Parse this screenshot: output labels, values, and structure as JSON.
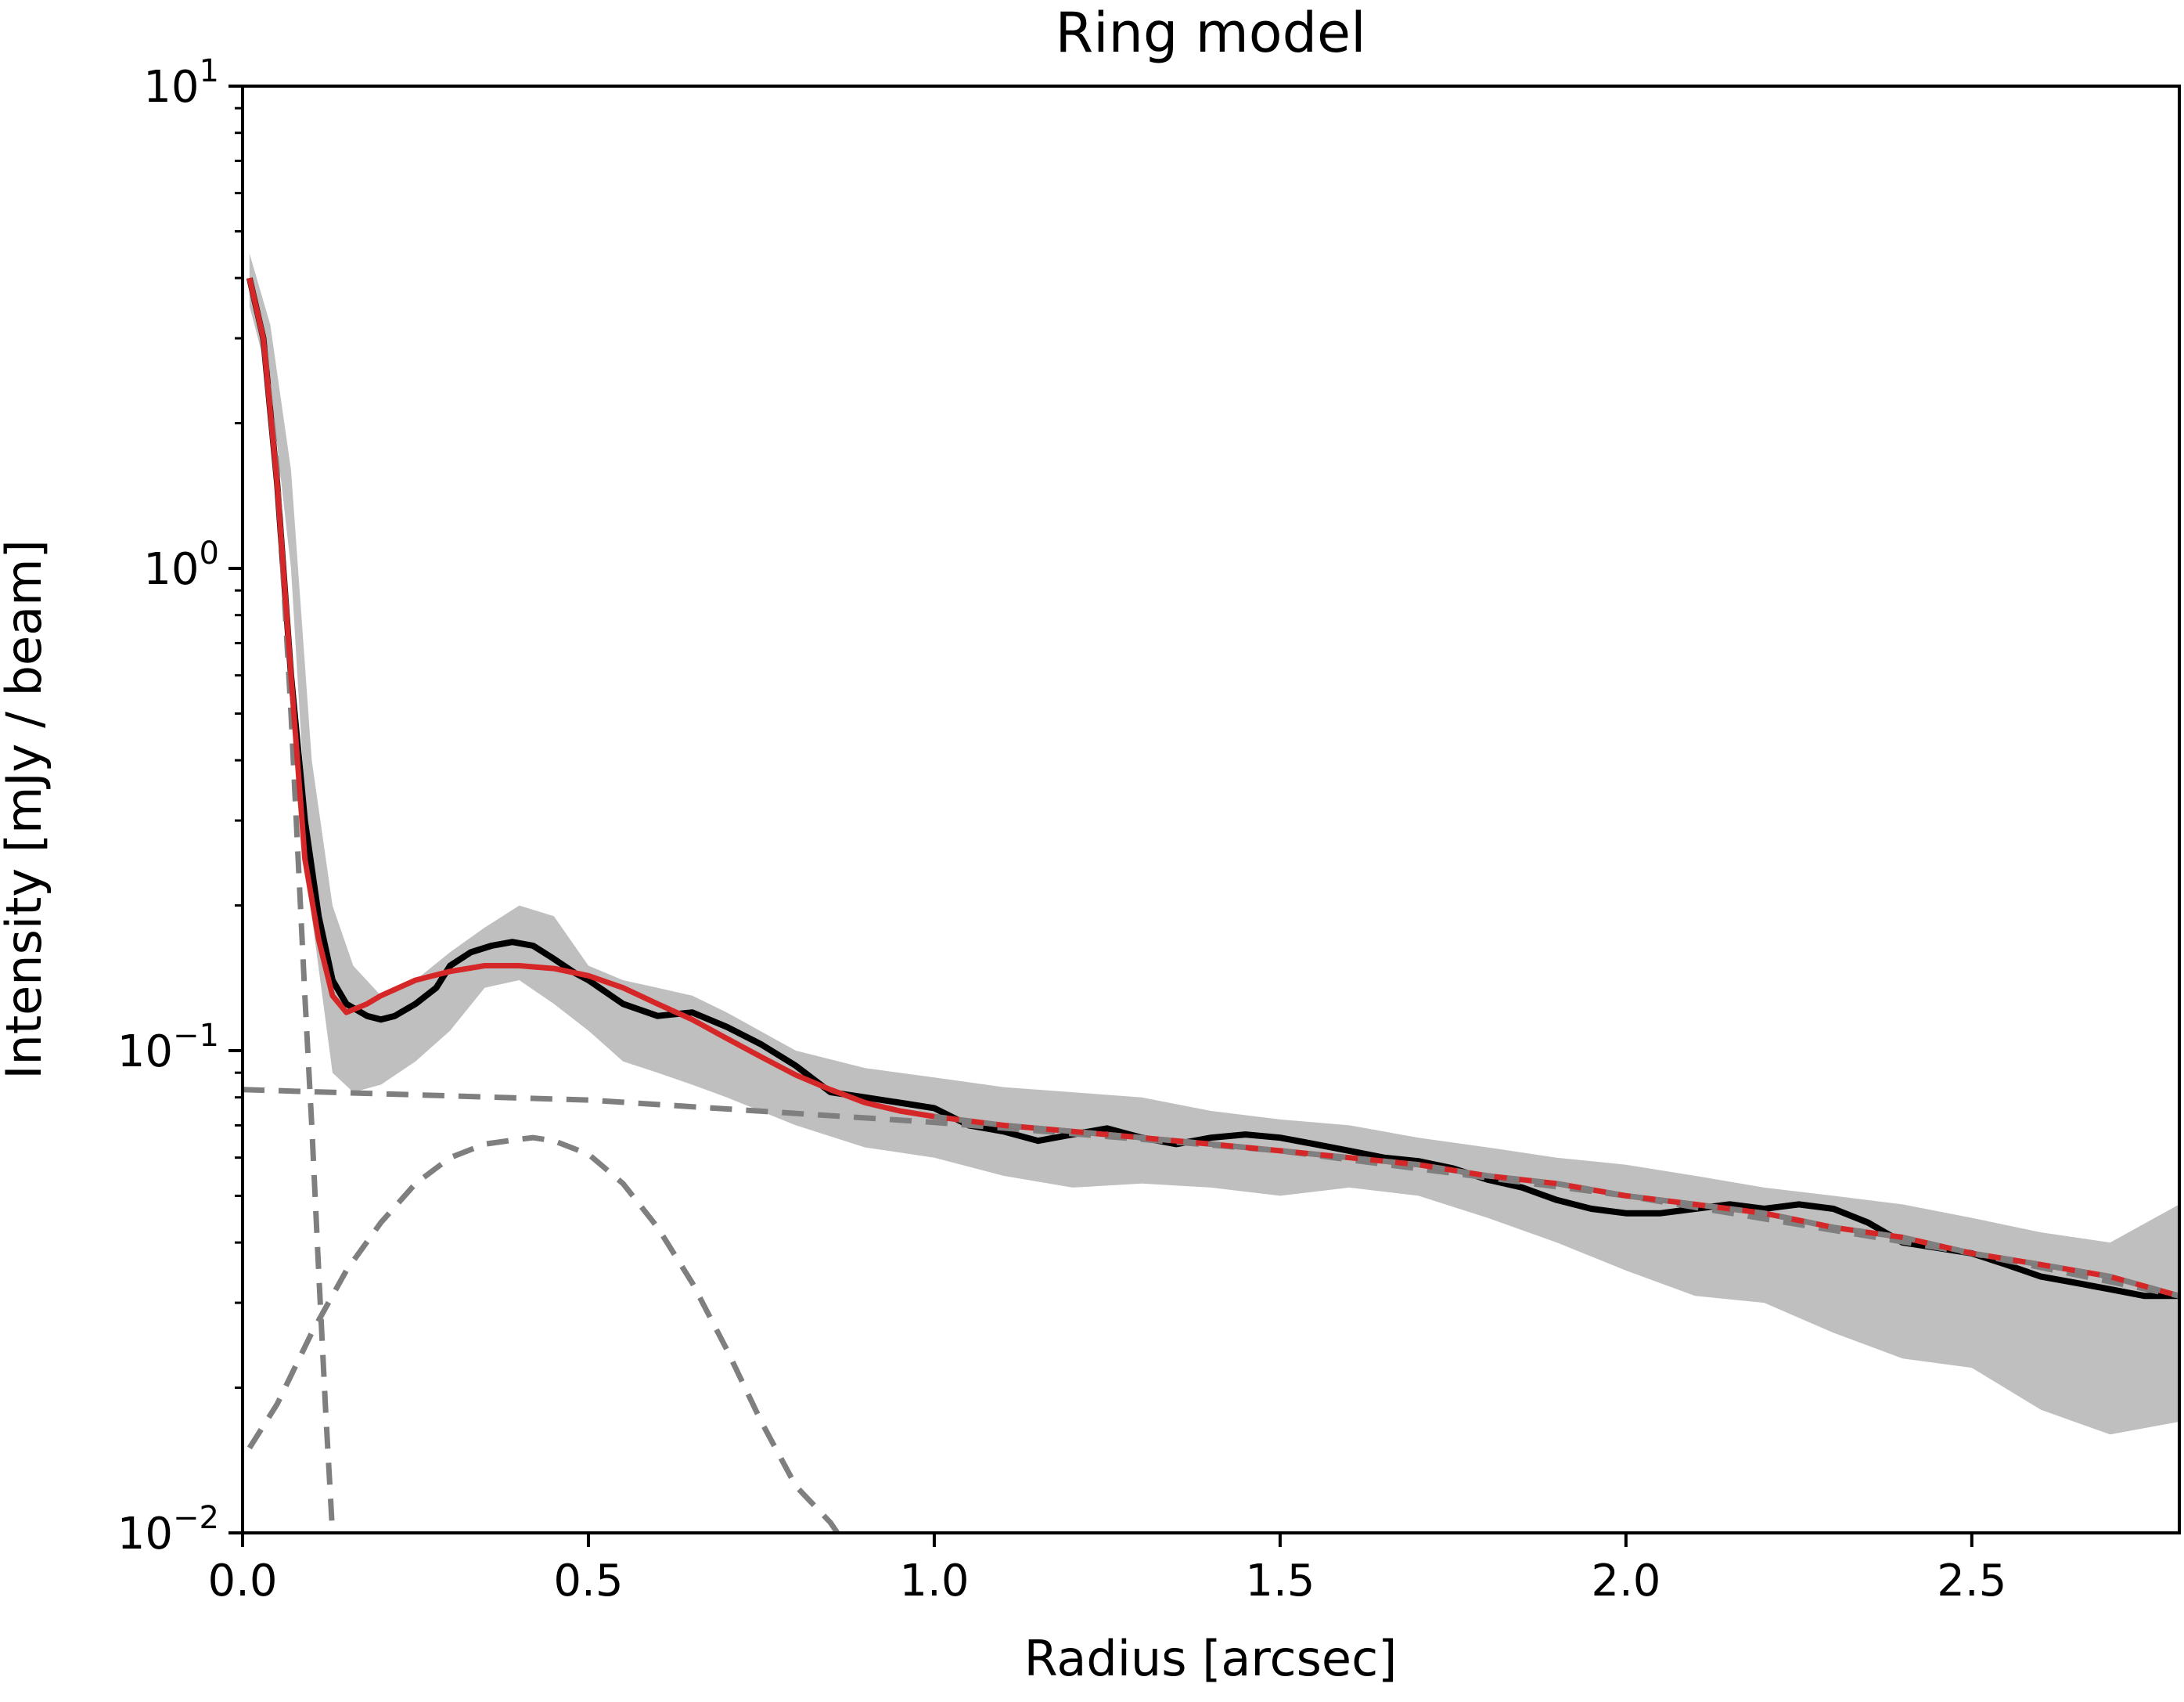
{
  "chart_data": {
    "type": "line",
    "title": "Ring model",
    "xlabel": "Radius [arcsec]",
    "ylabel": "Intensity [mJy / beam]",
    "xlim": [
      0.0,
      2.8
    ],
    "ylim": [
      0.01,
      10
    ],
    "yscale": "log",
    "grid": false,
    "legend": "none",
    "x_ticks": [
      {
        "value": 0.0,
        "label": "0.0"
      },
      {
        "value": 0.5,
        "label": "0.5"
      },
      {
        "value": 1.0,
        "label": "1.0"
      },
      {
        "value": 1.5,
        "label": "1.5"
      },
      {
        "value": 2.0,
        "label": "2.0"
      },
      {
        "value": 2.5,
        "label": "2.5"
      }
    ],
    "y_ticks": [
      {
        "value": 10,
        "base": "10",
        "exp": "1"
      },
      {
        "value": 1,
        "base": "10",
        "exp": "0"
      },
      {
        "value": 0.1,
        "base": "10",
        "exp": "−1"
      },
      {
        "value": 0.01,
        "base": "10",
        "exp": "−2"
      }
    ],
    "colors": {
      "band": "#bfbfbf",
      "data": "#000000",
      "model": "#d62728",
      "components": "#7f7f7f"
    },
    "uncertainty_band": {
      "x": [
        0.01,
        0.04,
        0.07,
        0.1,
        0.13,
        0.16,
        0.2,
        0.25,
        0.3,
        0.35,
        0.4,
        0.45,
        0.5,
        0.55,
        0.6,
        0.65,
        0.7,
        0.8,
        0.9,
        1.0,
        1.1,
        1.2,
        1.3,
        1.4,
        1.5,
        1.6,
        1.7,
        1.8,
        1.9,
        2.0,
        2.1,
        2.2,
        2.3,
        2.4,
        2.5,
        2.6,
        2.7,
        2.8
      ],
      "upper": [
        4.5,
        3.2,
        1.6,
        0.4,
        0.2,
        0.15,
        0.13,
        0.14,
        0.16,
        0.18,
        0.2,
        0.19,
        0.15,
        0.14,
        0.135,
        0.13,
        0.12,
        0.1,
        0.092,
        0.088,
        0.084,
        0.082,
        0.08,
        0.075,
        0.072,
        0.07,
        0.066,
        0.063,
        0.06,
        0.058,
        0.055,
        0.052,
        0.05,
        0.048,
        0.045,
        0.042,
        0.04,
        0.048
      ],
      "lower": [
        3.5,
        2.4,
        1.0,
        0.19,
        0.09,
        0.082,
        0.085,
        0.095,
        0.11,
        0.135,
        0.14,
        0.125,
        0.11,
        0.095,
        0.09,
        0.085,
        0.08,
        0.07,
        0.063,
        0.06,
        0.055,
        0.052,
        0.053,
        0.052,
        0.05,
        0.052,
        0.05,
        0.045,
        0.04,
        0.035,
        0.031,
        0.03,
        0.026,
        0.023,
        0.022,
        0.018,
        0.016,
        0.017
      ]
    },
    "series": [
      {
        "x": [
          0.01,
          0.03,
          0.05,
          0.07,
          0.09,
          0.11,
          0.13,
          0.15,
          0.18,
          0.2,
          0.22,
          0.25,
          0.28,
          0.3,
          0.33,
          0.36,
          0.39,
          0.42,
          0.45,
          0.48,
          0.5,
          0.55,
          0.6,
          0.65,
          0.7,
          0.75,
          0.8,
          0.85,
          0.9,
          0.95,
          1.0,
          1.05,
          1.1,
          1.15,
          1.2,
          1.25,
          1.3,
          1.35,
          1.4,
          1.45,
          1.5,
          1.55,
          1.6,
          1.65,
          1.7,
          1.75,
          1.8,
          1.85,
          1.9,
          1.95,
          2.0,
          2.05,
          2.1,
          2.15,
          2.2,
          2.25,
          2.3,
          2.35,
          2.4,
          2.45,
          2.5,
          2.55,
          2.6,
          2.65,
          2.7,
          2.75,
          2.8
        ],
        "values": [
          4.0,
          3.0,
          1.5,
          0.6,
          0.3,
          0.19,
          0.14,
          0.125,
          0.118,
          0.116,
          0.118,
          0.125,
          0.135,
          0.15,
          0.16,
          0.165,
          0.168,
          0.165,
          0.155,
          0.145,
          0.14,
          0.125,
          0.118,
          0.12,
          0.112,
          0.103,
          0.093,
          0.082,
          0.08,
          0.078,
          0.076,
          0.07,
          0.068,
          0.065,
          0.067,
          0.069,
          0.066,
          0.064,
          0.066,
          0.067,
          0.066,
          0.064,
          0.062,
          0.06,
          0.059,
          0.057,
          0.054,
          0.052,
          0.049,
          0.047,
          0.046,
          0.046,
          0.047,
          0.048,
          0.047,
          0.048,
          0.047,
          0.044,
          0.04,
          0.039,
          0.038,
          0.036,
          0.034,
          0.033,
          0.032,
          0.031,
          0.031
        ]
      },
      {
        "x": [
          0.01,
          0.03,
          0.05,
          0.07,
          0.09,
          0.11,
          0.13,
          0.15,
          0.18,
          0.2,
          0.25,
          0.3,
          0.35,
          0.4,
          0.45,
          0.5,
          0.55,
          0.6,
          0.65,
          0.7,
          0.75,
          0.8,
          0.85,
          0.9,
          0.95,
          1.0,
          1.1,
          1.2,
          1.3,
          1.4,
          1.5,
          1.6,
          1.7,
          1.8,
          1.9,
          2.0,
          2.1,
          2.2,
          2.3,
          2.4,
          2.5,
          2.6,
          2.7,
          2.8
        ],
        "values": [
          4.0,
          3.0,
          1.5,
          0.6,
          0.25,
          0.17,
          0.13,
          0.12,
          0.125,
          0.13,
          0.14,
          0.146,
          0.15,
          0.15,
          0.148,
          0.143,
          0.135,
          0.125,
          0.116,
          0.106,
          0.097,
          0.089,
          0.083,
          0.078,
          0.075,
          0.073,
          0.07,
          0.068,
          0.066,
          0.064,
          0.062,
          0.06,
          0.058,
          0.055,
          0.053,
          0.05,
          0.048,
          0.046,
          0.043,
          0.041,
          0.038,
          0.036,
          0.034,
          0.031
        ]
      },
      {
        "x": [
          0.01,
          0.03,
          0.05,
          0.07,
          0.09,
          0.1,
          0.11,
          0.12,
          0.13
        ],
        "values": [
          4.0,
          3.0,
          1.6,
          0.5,
          0.13,
          0.07,
          0.035,
          0.018,
          0.01
        ]
      },
      {
        "x": [
          0.0,
          0.5,
          1.0,
          1.5,
          2.0,
          2.5,
          2.8
        ],
        "values": [
          0.083,
          0.079,
          0.071,
          0.062,
          0.05,
          0.038,
          0.031
        ]
      },
      {
        "x": [
          0.01,
          0.05,
          0.1,
          0.15,
          0.2,
          0.25,
          0.3,
          0.35,
          0.4,
          0.42,
          0.45,
          0.5,
          0.55,
          0.6,
          0.65,
          0.7,
          0.75,
          0.8,
          0.85,
          0.86
        ],
        "values": [
          0.015,
          0.0185,
          0.026,
          0.035,
          0.044,
          0.053,
          0.06,
          0.064,
          0.0655,
          0.066,
          0.065,
          0.061,
          0.053,
          0.043,
          0.033,
          0.024,
          0.017,
          0.0125,
          0.0105,
          0.01
        ]
      }
    ]
  }
}
